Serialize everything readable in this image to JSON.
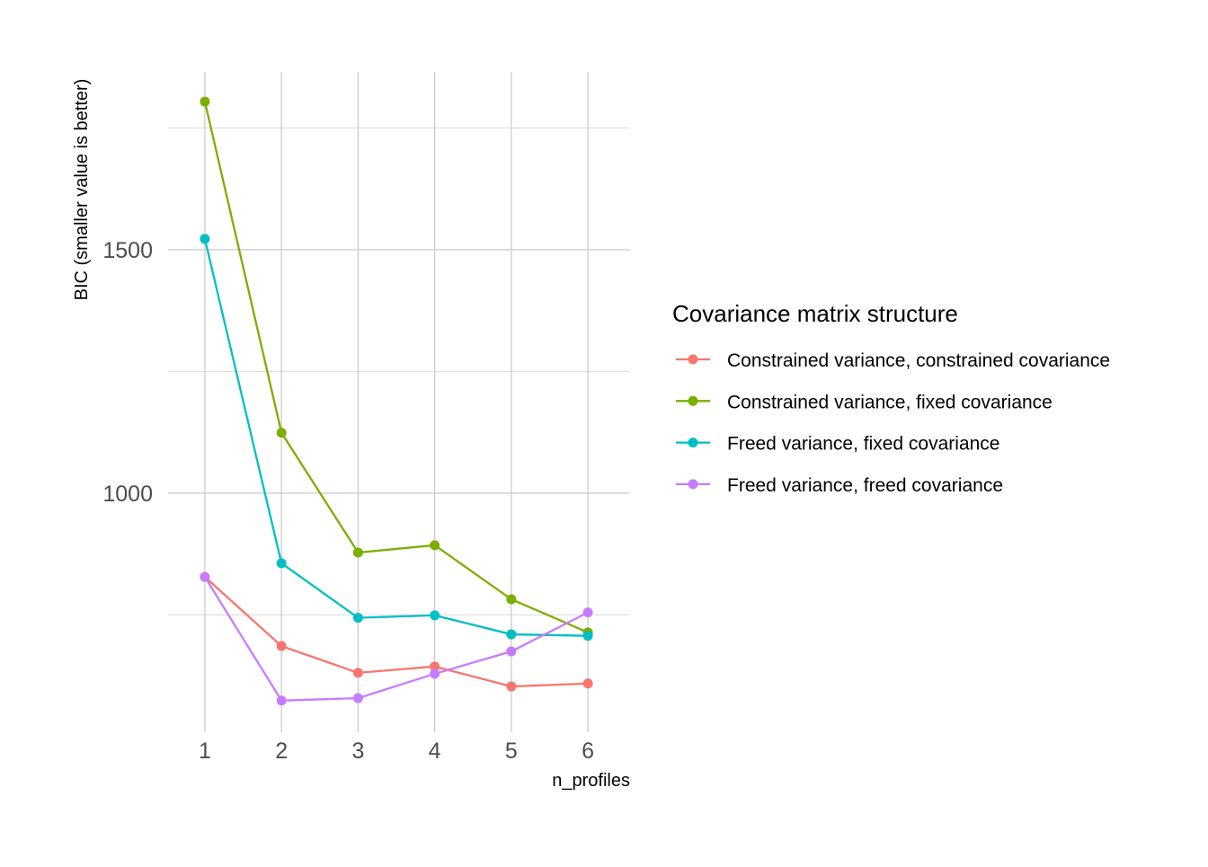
{
  "chart_data": {
    "type": "line",
    "title": "",
    "xlabel": "n_profiles",
    "ylabel": "BIC (smaller value is better)",
    "x": [
      1,
      2,
      3,
      4,
      5,
      6
    ],
    "x_ticks": [
      "1",
      "2",
      "3",
      "4",
      "5",
      "6"
    ],
    "y_ticks": [
      1000,
      1500
    ],
    "y_tick_labels": [
      "1000",
      "1500"
    ],
    "y_minor_gridlines": [
      750,
      1250,
      1750
    ],
    "xlim": [
      0.52,
      6.55
    ],
    "ylim": [
      509,
      1865
    ],
    "grid": true,
    "legend": {
      "title": "Covariance matrix structure",
      "placement": "right"
    },
    "series": [
      {
        "name": "Constrained variance, constrained covariance",
        "color": "#F8766D",
        "values": [
          828,
          686,
          631,
          644,
          603,
          609
        ]
      },
      {
        "name": "Constrained variance, fixed covariance",
        "color": "#7CAE00",
        "values": [
          1804,
          1124,
          878,
          893,
          782,
          714
        ]
      },
      {
        "name": "Freed variance, fixed covariance",
        "color": "#00BFC4",
        "values": [
          1522,
          856,
          744,
          749,
          710,
          707
        ]
      },
      {
        "name": "Freed variance, freed covariance",
        "color": "#C77CFF",
        "values": [
          828,
          574,
          579,
          629,
          675,
          755
        ]
      }
    ]
  }
}
